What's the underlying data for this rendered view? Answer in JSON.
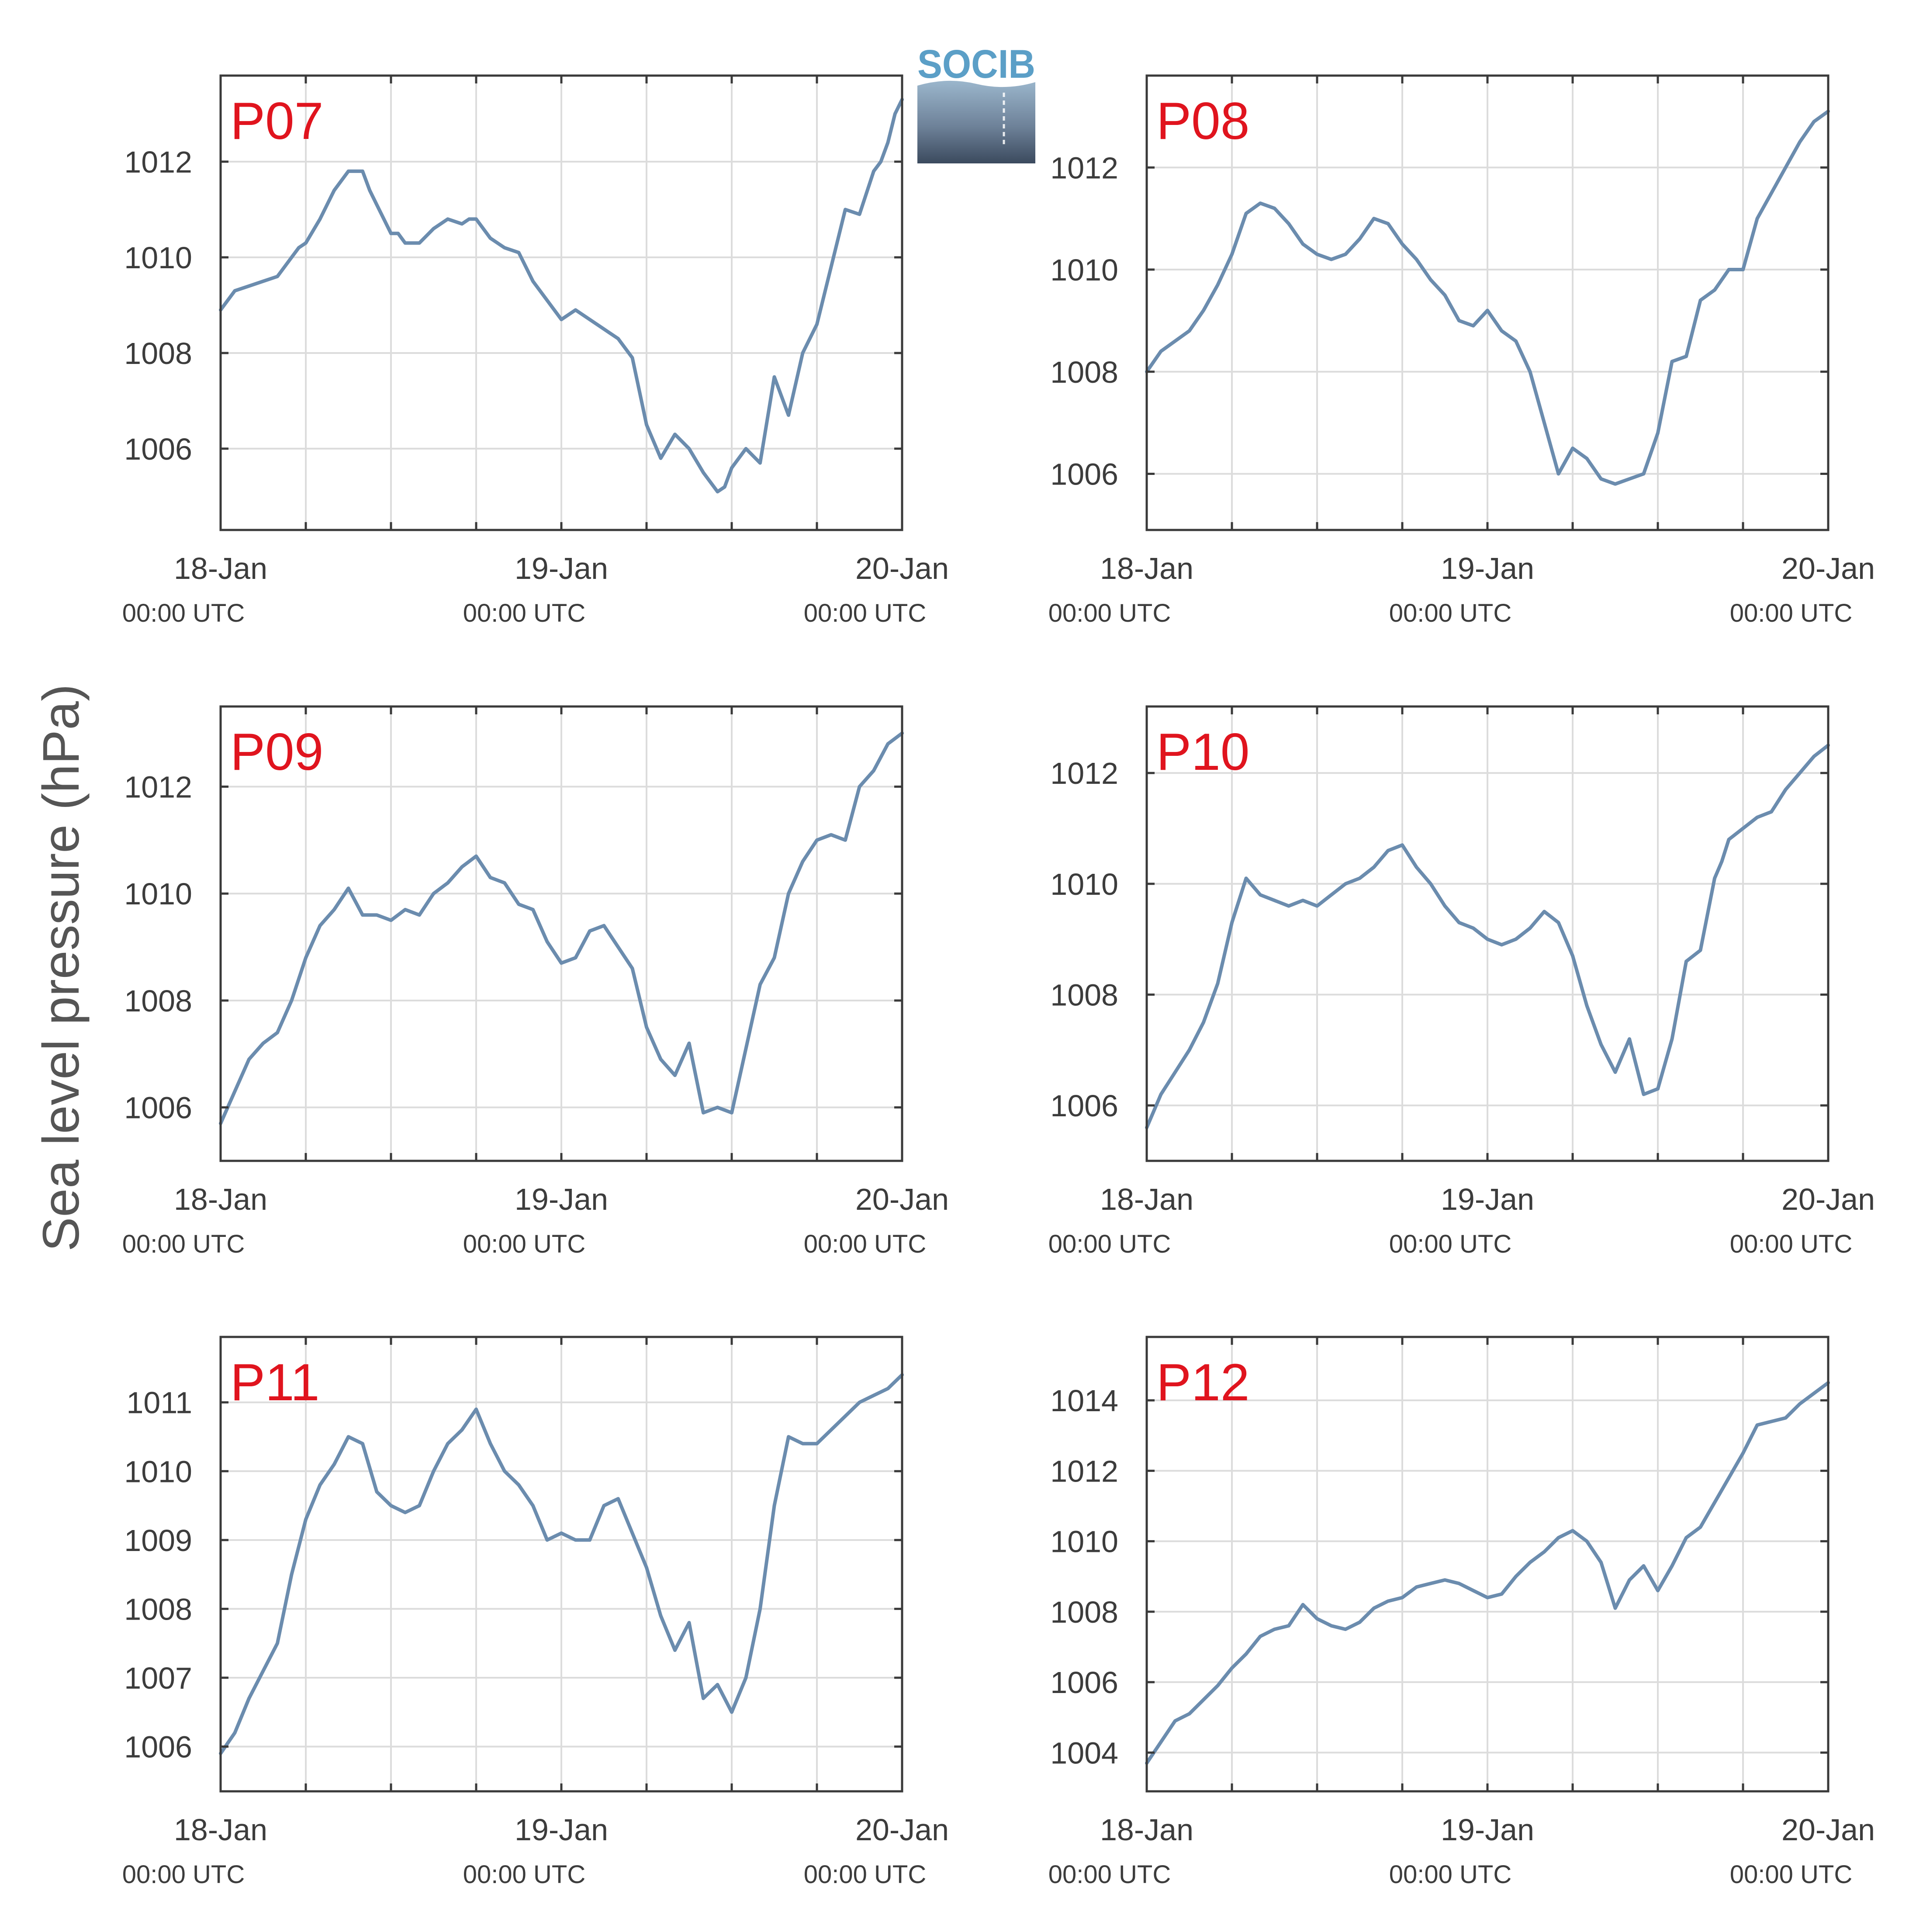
{
  "figure": {
    "ylabel": "Sea level pressure (hPa)",
    "line_color": "#6b8cae",
    "label_color": "#e0141e"
  },
  "logo": {
    "text": "SOCIB",
    "color": "#5b9fc7"
  },
  "chart_data": [
    {
      "type": "line",
      "panel": "P07",
      "xlim": [
        0,
        48
      ],
      "ylim": [
        1004.3,
        1013.8
      ],
      "yticks": [
        1006,
        1008,
        1010,
        1012
      ],
      "xticks": [
        0,
        6,
        12,
        18,
        24,
        30,
        36,
        42,
        48
      ],
      "xtick_labels": [
        {
          "x": 0,
          "day": "18-Jan",
          "time": "00:00 UTC"
        },
        {
          "x": 24,
          "day": "19-Jan",
          "time": "00:00 UTC"
        },
        {
          "x": 48,
          "day": "20-Jan",
          "time": "00:00 UTC"
        }
      ],
      "grid": true,
      "x": [
        0,
        1,
        2,
        3,
        4,
        5,
        5.5,
        6,
        7,
        8,
        9,
        10,
        10.5,
        11,
        12,
        12.5,
        13,
        14,
        15,
        16,
        17,
        17.5,
        18,
        19,
        20,
        21,
        22,
        23,
        24,
        25,
        26,
        27,
        28,
        29,
        30,
        31,
        32,
        33,
        34,
        35,
        35.5,
        36,
        37,
        38,
        39,
        40,
        41,
        42,
        43,
        44,
        45,
        46,
        46.5,
        47,
        47.5,
        48
      ],
      "y": [
        1008.9,
        1009.3,
        1009.4,
        1009.5,
        1009.6,
        1010.0,
        1010.2,
        1010.3,
        1010.8,
        1011.4,
        1011.8,
        1011.8,
        1011.4,
        1011.1,
        1010.5,
        1010.5,
        1010.3,
        1010.3,
        1010.6,
        1010.8,
        1010.7,
        1010.8,
        1010.8,
        1010.4,
        1010.2,
        1010.1,
        1009.5,
        1009.1,
        1008.7,
        1008.9,
        1008.7,
        1008.5,
        1008.3,
        1007.9,
        1006.5,
        1005.8,
        1006.3,
        1006.0,
        1005.5,
        1005.1,
        1005.2,
        1005.6,
        1006.0,
        1005.7,
        1007.5,
        1006.7,
        1008.0,
        1008.6,
        1009.8,
        1011.0,
        1010.9,
        1011.8,
        1012.0,
        1012.4,
        1013.0,
        1013.3
      ],
      "xlabel": "",
      "title": ""
    },
    {
      "type": "line",
      "panel": "P08",
      "xlim": [
        0,
        48
      ],
      "ylim": [
        1004.9,
        1013.8
      ],
      "yticks": [
        1006,
        1008,
        1010,
        1012
      ],
      "xticks": [
        0,
        6,
        12,
        18,
        24,
        30,
        36,
        42,
        48
      ],
      "xtick_labels": [
        {
          "x": 0,
          "day": "18-Jan",
          "time": "00:00 UTC"
        },
        {
          "x": 24,
          "day": "19-Jan",
          "time": "00:00 UTC"
        },
        {
          "x": 48,
          "day": "20-Jan",
          "time": "00:00 UTC"
        }
      ],
      "grid": true,
      "x": [
        0,
        1,
        2,
        3,
        4,
        5,
        6,
        7,
        8,
        9,
        10,
        11,
        12,
        13,
        14,
        15,
        16,
        17,
        18,
        19,
        20,
        21,
        22,
        23,
        24,
        25,
        26,
        27,
        28,
        29,
        30,
        31,
        32,
        33,
        34,
        35,
        36,
        37,
        38,
        39,
        40,
        40.5,
        41,
        42,
        42.5,
        43,
        44,
        45,
        46,
        47,
        48
      ],
      "y": [
        1008.0,
        1008.4,
        1008.6,
        1008.8,
        1009.2,
        1009.7,
        1010.3,
        1011.1,
        1011.3,
        1011.2,
        1010.9,
        1010.5,
        1010.3,
        1010.2,
        1010.3,
        1010.6,
        1011.0,
        1010.9,
        1010.5,
        1010.2,
        1009.8,
        1009.5,
        1009.0,
        1008.9,
        1009.2,
        1008.8,
        1008.6,
        1008.0,
        1007.0,
        1006.0,
        1006.5,
        1006.3,
        1005.9,
        1005.8,
        1005.9,
        1006.0,
        1006.8,
        1008.2,
        1008.3,
        1009.4,
        1009.6,
        1009.8,
        1010.0,
        1010.0,
        1010.5,
        1011.0,
        1011.5,
        1012.0,
        1012.5,
        1012.9,
        1013.1
      ],
      "xlabel": "",
      "title": ""
    },
    {
      "type": "line",
      "panel": "P09",
      "xlim": [
        0,
        48
      ],
      "ylim": [
        1005.0,
        1013.5
      ],
      "yticks": [
        1006,
        1008,
        1010,
        1012
      ],
      "xticks": [
        0,
        6,
        12,
        18,
        24,
        30,
        36,
        42,
        48
      ],
      "xtick_labels": [
        {
          "x": 0,
          "day": "18-Jan",
          "time": "00:00 UTC"
        },
        {
          "x": 24,
          "day": "19-Jan",
          "time": "00:00 UTC"
        },
        {
          "x": 48,
          "day": "20-Jan",
          "time": "00:00 UTC"
        }
      ],
      "grid": true,
      "x": [
        0,
        1,
        2,
        3,
        4,
        5,
        6,
        7,
        8,
        9,
        10,
        11,
        12,
        13,
        14,
        15,
        16,
        17,
        18,
        19,
        20,
        21,
        22,
        23,
        24,
        25,
        26,
        27,
        28,
        29,
        30,
        31,
        32,
        33,
        34,
        35,
        36,
        37,
        38,
        39,
        40,
        40.5,
        41,
        42,
        43,
        44,
        45,
        46,
        47,
        48
      ],
      "y": [
        1005.7,
        1006.3,
        1006.9,
        1007.2,
        1007.4,
        1008.0,
        1008.8,
        1009.4,
        1009.7,
        1010.1,
        1009.6,
        1009.6,
        1009.5,
        1009.7,
        1009.6,
        1010.0,
        1010.2,
        1010.5,
        1010.7,
        1010.3,
        1010.2,
        1009.8,
        1009.7,
        1009.1,
        1008.7,
        1008.8,
        1009.3,
        1009.4,
        1009.0,
        1008.6,
        1007.5,
        1006.9,
        1006.6,
        1007.2,
        1005.9,
        1006.0,
        1005.9,
        1007.1,
        1008.3,
        1008.8,
        1010.0,
        1010.3,
        1010.6,
        1011.0,
        1011.1,
        1011.0,
        1012.0,
        1012.3,
        1012.8,
        1013.0
      ],
      "xlabel": "",
      "title": ""
    },
    {
      "type": "line",
      "panel": "P10",
      "xlim": [
        0,
        48
      ],
      "ylim": [
        1005.0,
        1013.2
      ],
      "yticks": [
        1006,
        1008,
        1010,
        1012
      ],
      "xticks": [
        0,
        6,
        12,
        18,
        24,
        30,
        36,
        42,
        48
      ],
      "xtick_labels": [
        {
          "x": 0,
          "day": "18-Jan",
          "time": "00:00 UTC"
        },
        {
          "x": 24,
          "day": "19-Jan",
          "time": "00:00 UTC"
        },
        {
          "x": 48,
          "day": "20-Jan",
          "time": "00:00 UTC"
        }
      ],
      "grid": true,
      "x": [
        0,
        1,
        2,
        3,
        4,
        5,
        6,
        7,
        8,
        9,
        10,
        11,
        12,
        13,
        14,
        15,
        16,
        17,
        18,
        19,
        20,
        21,
        22,
        23,
        24,
        25,
        26,
        27,
        28,
        29,
        30,
        31,
        32,
        33,
        34,
        35,
        36,
        37,
        38,
        39,
        40,
        40.5,
        41,
        42,
        43,
        44,
        45,
        46,
        47,
        48
      ],
      "y": [
        1005.6,
        1006.2,
        1006.6,
        1007.0,
        1007.5,
        1008.2,
        1009.3,
        1010.1,
        1009.8,
        1009.7,
        1009.6,
        1009.7,
        1009.6,
        1009.8,
        1010.0,
        1010.1,
        1010.3,
        1010.6,
        1010.7,
        1010.3,
        1010.0,
        1009.6,
        1009.3,
        1009.2,
        1009.0,
        1008.9,
        1009.0,
        1009.2,
        1009.5,
        1009.3,
        1008.7,
        1007.8,
        1007.1,
        1006.6,
        1007.2,
        1006.2,
        1006.3,
        1007.2,
        1008.6,
        1008.8,
        1010.1,
        1010.4,
        1010.8,
        1011.0,
        1011.2,
        1011.3,
        1011.7,
        1012.0,
        1012.3,
        1012.5
      ],
      "xlabel": "",
      "title": ""
    },
    {
      "type": "line",
      "panel": "P11",
      "xlim": [
        0,
        48
      ],
      "ylim": [
        1005.35,
        1011.95
      ],
      "yticks": [
        1006,
        1007,
        1008,
        1009,
        1010,
        1011
      ],
      "xticks": [
        0,
        6,
        12,
        18,
        24,
        30,
        36,
        42,
        48
      ],
      "xtick_labels": [
        {
          "x": 0,
          "day": "18-Jan",
          "time": "00:00 UTC"
        },
        {
          "x": 24,
          "day": "19-Jan",
          "time": "00:00 UTC"
        },
        {
          "x": 48,
          "day": "20-Jan",
          "time": "00:00 UTC"
        }
      ],
      "grid": true,
      "x": [
        0,
        1,
        2,
        3,
        4,
        5,
        6,
        7,
        8,
        9,
        10,
        11,
        12,
        13,
        14,
        15,
        16,
        17,
        18,
        19,
        20,
        21,
        22,
        23,
        24,
        25,
        26,
        27,
        28,
        29,
        30,
        31,
        32,
        33,
        34,
        35,
        36,
        37,
        38,
        39,
        40,
        41,
        42,
        43,
        44,
        45,
        46,
        47,
        48
      ],
      "y": [
        1005.9,
        1006.2,
        1006.7,
        1007.1,
        1007.5,
        1008.5,
        1009.3,
        1009.8,
        1010.1,
        1010.5,
        1010.4,
        1009.7,
        1009.5,
        1009.4,
        1009.5,
        1010.0,
        1010.4,
        1010.6,
        1010.9,
        1010.4,
        1010.0,
        1009.8,
        1009.5,
        1009.0,
        1009.1,
        1009.0,
        1009.0,
        1009.5,
        1009.6,
        1009.1,
        1008.6,
        1007.9,
        1007.4,
        1007.8,
        1006.7,
        1006.9,
        1006.5,
        1007.0,
        1008.0,
        1009.5,
        1010.5,
        1010.4,
        1010.4,
        1010.6,
        1010.8,
        1011.0,
        1011.1,
        1011.2,
        1011.4
      ],
      "xlabel": "",
      "title": ""
    },
    {
      "type": "line",
      "panel": "P12",
      "xlim": [
        0,
        48
      ],
      "ylim": [
        1002.9,
        1015.8
      ],
      "yticks": [
        1004,
        1006,
        1008,
        1010,
        1012,
        1014
      ],
      "xticks": [
        0,
        6,
        12,
        18,
        24,
        30,
        36,
        42,
        48
      ],
      "xtick_labels": [
        {
          "x": 0,
          "day": "18-Jan",
          "time": "00:00 UTC"
        },
        {
          "x": 24,
          "day": "19-Jan",
          "time": "00:00 UTC"
        },
        {
          "x": 48,
          "day": "20-Jan",
          "time": "00:00 UTC"
        }
      ],
      "grid": true,
      "x": [
        0,
        1,
        2,
        3,
        4,
        5,
        6,
        7,
        8,
        9,
        10,
        11,
        12,
        13,
        14,
        15,
        16,
        17,
        18,
        19,
        20,
        21,
        22,
        23,
        24,
        25,
        26,
        27,
        28,
        29,
        30,
        31,
        32,
        33,
        34,
        35,
        36,
        37,
        38,
        39,
        40,
        41,
        42,
        43,
        44,
        45,
        46,
        47,
        48
      ],
      "y": [
        1003.7,
        1004.3,
        1004.9,
        1005.1,
        1005.5,
        1005.9,
        1006.4,
        1006.8,
        1007.3,
        1007.5,
        1007.6,
        1008.2,
        1007.8,
        1007.6,
        1007.5,
        1007.7,
        1008.1,
        1008.3,
        1008.4,
        1008.7,
        1008.8,
        1008.9,
        1008.8,
        1008.6,
        1008.4,
        1008.5,
        1009.0,
        1009.4,
        1009.7,
        1010.1,
        1010.3,
        1010.0,
        1009.4,
        1008.1,
        1008.9,
        1009.3,
        1008.6,
        1009.3,
        1010.1,
        1010.4,
        1011.1,
        1011.8,
        1012.5,
        1013.3,
        1013.4,
        1013.5,
        1013.9,
        1014.2,
        1014.5
      ],
      "xlabel": "",
      "title": ""
    }
  ]
}
